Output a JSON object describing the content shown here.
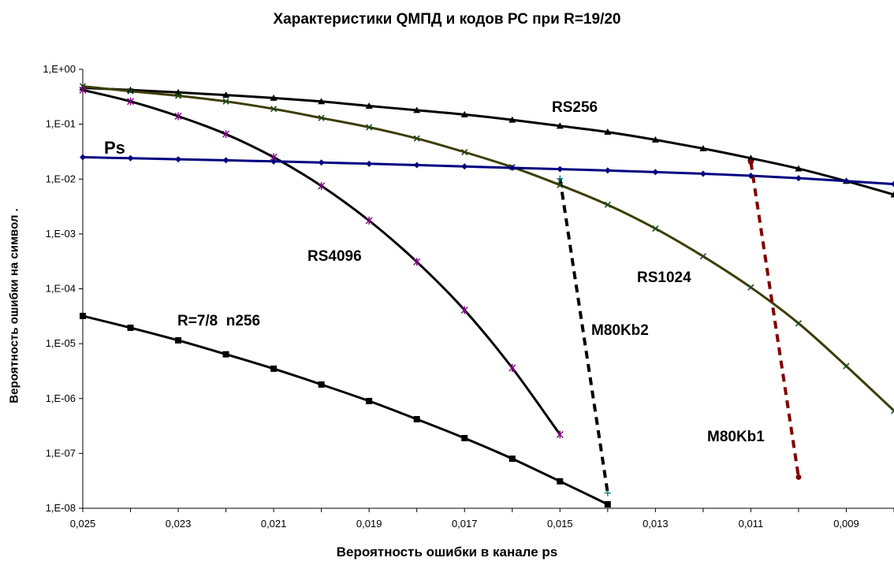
{
  "chart_data": {
    "type": "line",
    "title": "Характеристики QМПД и кодов РС при R=19/20",
    "xlabel": "Вероятность ошибки в канале ps",
    "ylabel": "Вероятность ошибки на символ   .",
    "x_scale": "linear, reversed",
    "y_scale": "log",
    "xlim": [
      0.025,
      0.008
    ],
    "ylim": [
      1e-08,
      1
    ],
    "grid": false,
    "legend": "none",
    "x_ticks": [
      "0,025",
      "0,023",
      "0,021",
      "0,019",
      "0,017",
      "0,015",
      "0,013",
      "0,011",
      "0,009"
    ],
    "y_ticks": [
      "1,E+00",
      "1,E-01",
      "1,E-02",
      "1,E-03",
      "1,E-04",
      "1,E-05",
      "1,E-06",
      "1,E-07",
      "1,E-08"
    ],
    "series": [
      {
        "name": "RS256",
        "color": "#000000",
        "marker": "triangle",
        "x": [
          0.025,
          0.024,
          0.023,
          0.022,
          0.021,
          0.02,
          0.019,
          0.018,
          0.017,
          0.016,
          0.015,
          0.014,
          0.013,
          0.012,
          0.011,
          0.01,
          0.009,
          0.008
        ],
        "y": [
          0.46,
          0.42,
          0.38,
          0.34,
          0.3,
          0.26,
          0.215,
          0.18,
          0.15,
          0.12,
          0.093,
          0.072,
          0.052,
          0.036,
          0.024,
          0.0155,
          0.0092,
          0.0052
        ]
      },
      {
        "name": "RS1024",
        "color": "#3d3d05",
        "marker": "x",
        "x": [
          0.025,
          0.024,
          0.023,
          0.022,
          0.021,
          0.02,
          0.019,
          0.018,
          0.017,
          0.016,
          0.015,
          0.014,
          0.013,
          0.012,
          0.011,
          0.01,
          0.009,
          0.008
        ],
        "y": [
          0.49,
          0.4,
          0.33,
          0.26,
          0.19,
          0.13,
          0.088,
          0.055,
          0.031,
          0.0165,
          0.0078,
          0.0034,
          0.00125,
          0.00039,
          0.000106,
          2.35e-05,
          3.9e-06,
          6e-07
        ]
      },
      {
        "name": "RS4096",
        "color": "#000000",
        "marker": "star",
        "x": [
          0.025,
          0.024,
          0.023,
          0.022,
          0.021,
          0.02,
          0.019,
          0.018,
          0.017,
          0.016,
          0.015
        ],
        "y": [
          0.42,
          0.26,
          0.14,
          0.066,
          0.025,
          0.0075,
          0.00175,
          0.00031,
          4.1e-05,
          3.6e-06,
          2.2e-07
        ]
      },
      {
        "name": "Ps",
        "color": "#000080",
        "marker": "diamond",
        "x": [
          0.025,
          0.024,
          0.023,
          0.022,
          0.021,
          0.02,
          0.019,
          0.018,
          0.017,
          0.016,
          0.015,
          0.014,
          0.013,
          0.012,
          0.011,
          0.01,
          0.009,
          0.008
        ],
        "y": [
          0.025,
          0.024,
          0.023,
          0.022,
          0.021,
          0.02,
          0.019,
          0.018,
          0.017,
          0.016,
          0.0152,
          0.0143,
          0.0134,
          0.0125,
          0.0115,
          0.0104,
          0.0092,
          0.0081
        ]
      },
      {
        "name": "R=7/8  n256",
        "color": "#000000",
        "marker": "square",
        "x": [
          0.025,
          0.024,
          0.023,
          0.022,
          0.021,
          0.02,
          0.019,
          0.018,
          0.017,
          0.016,
          0.015,
          0.014
        ],
        "y": [
          3.2e-05,
          1.95e-05,
          1.15e-05,
          6.4e-06,
          3.5e-06,
          1.8e-06,
          9e-07,
          4.2e-07,
          1.9e-07,
          8e-08,
          3.1e-08,
          1.18e-08
        ]
      },
      {
        "name": "M80Kb2",
        "color": "#000000",
        "marker": "plus",
        "marker_color": "#008080",
        "dashed": true,
        "x": [
          0.015,
          0.014
        ],
        "y": [
          0.0102,
          1.9e-08
        ]
      },
      {
        "name": "M80Kb1",
        "color": "#800000",
        "marker": "circle",
        "dashed": true,
        "x": [
          0.011,
          0.01
        ],
        "y": [
          0.0205,
          3.7e-08
        ]
      }
    ],
    "annotations": [
      "RS256",
      "Ps",
      "RS4096",
      "RS1024",
      "R=7/8  n256",
      "M80Kb2",
      "M80Kb1"
    ]
  }
}
